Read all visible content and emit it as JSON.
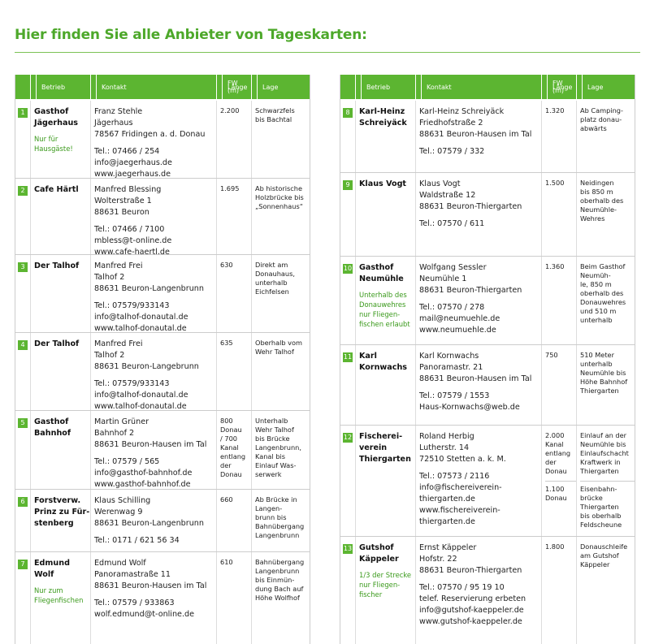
{
  "title": "Hier finden Sie alle Anbieter von Tageskarten:",
  "tables": [
    {
      "header": {
        "betrieb": "Betrieb",
        "kontakt": "Kontakt",
        "laenge": [
          "Länge",
          "FW (m)"
        ],
        "lage": "Lage"
      },
      "rows": [
        {
          "number": "1",
          "name": [
            "Gasthof",
            "Jägerhaus"
          ],
          "note": [
            "Nur für",
            "Hausgäste!"
          ],
          "address": [
            "Franz Stehle",
            "Jägerhaus",
            "78567 Fridingen a. d. Donau"
          ],
          "reach": [
            "Tel.:  07466 / 254",
            "info@jaegerhaus.de",
            "www.jaegerhaus.de"
          ],
          "laenge": [
            [
              "2.200"
            ]
          ],
          "lage": [
            [
              "Schwarzfels",
              "bis Bachtal"
            ]
          ]
        },
        {
          "number": "2",
          "name": [
            "Cafe Härtl"
          ],
          "note": [],
          "address": [
            "Manfred Blessing",
            "Wolterstraße 1",
            "88631 Beuron"
          ],
          "reach": [
            "Tel.: 07466 / 7100",
            "mbless@t-online.de",
            "www.cafe-haertl.de"
          ],
          "laenge": [
            [
              "1.695"
            ]
          ],
          "lage": [
            [
              "Ab historische",
              "Holzbrücke bis",
              "„Sonnenhaus“"
            ]
          ]
        },
        {
          "number": "3",
          "name": [
            "Der Talhof"
          ],
          "note": [],
          "address": [
            "Manfred Frei",
            "Talhof 2",
            "88631 Beuron-Langenbrunn"
          ],
          "reach": [
            "Tel.: 07579/933143",
            "info@talhof-donautal.de",
            "www.talhof-donautal.de"
          ],
          "laenge": [
            [
              "630"
            ]
          ],
          "lage": [
            [
              "Direkt am",
              "Donauhaus,",
              "unterhalb",
              "Eichfelsen"
            ]
          ]
        },
        {
          "number": "4",
          "name": [
            "Der Talhof"
          ],
          "note": [],
          "address": [
            "Manfred Frei",
            "Talhof 2",
            "88631 Beuron-Langebrunn"
          ],
          "reach": [
            "Tel.: 07579/933143",
            "info@talhof-donautal.de",
            "www.talhof-donautal.de"
          ],
          "laenge": [
            [
              "635"
            ]
          ],
          "lage": [
            [
              "Oberhalb vom",
              "Wehr Talhof"
            ]
          ]
        },
        {
          "number": "5",
          "name": [
            "Gasthof",
            "Bahnhof"
          ],
          "note": [],
          "address": [
            "Martin Grüner",
            "Bahnhof 2",
            "88631 Beuron-Hausen im Tal"
          ],
          "reach": [
            "Tel.: 07579 / 565",
            "info@gasthof-bahnhof.de",
            "www.gasthof-bahnhof.de"
          ],
          "laenge": [
            [
              "800",
              "Donau",
              "/ 700",
              "Kanal",
              "entlang",
              "der",
              "Donau"
            ]
          ],
          "lage": [
            [
              "Unterhalb",
              "Wehr Talhof",
              "bis Brücke",
              "Langenbrunn,",
              "Kanal bis",
              "Einlauf Was-",
              "serwerk"
            ]
          ]
        },
        {
          "number": "6",
          "name": [
            "Forstverw.",
            "Prinz zu Für-",
            "stenberg"
          ],
          "note": [],
          "address": [
            "Klaus Schilling",
            "Werenwag 9",
            "88631 Beuron-Langenbrunn"
          ],
          "reach": [
            "Tel.: 0171 / 621 56 34"
          ],
          "laenge": [
            [
              "660"
            ]
          ],
          "lage": [
            [
              "Ab Brücke in",
              "Langen-",
              "brunn bis",
              "Bahnübergang",
              "Langenbrunn"
            ]
          ]
        },
        {
          "number": "7",
          "name": [
            "Edmund",
            "Wolf"
          ],
          "note": [
            "Nur zum",
            "Fliegenfischen"
          ],
          "address": [
            "Edmund Wolf",
            "Panoramastraße 11",
            "88631 Beuron-Hausen im Tal"
          ],
          "reach": [
            "Tel.: 07579 / 933863",
            "wolf.edmund@t-online.de"
          ],
          "laenge": [
            [
              "610"
            ]
          ],
          "lage": [
            [
              "Bahnübergang",
              "Langenbrunn",
              "bis Einmün-",
              "dung Bach auf",
              "Höhe Wolfhof"
            ]
          ]
        }
      ]
    },
    {
      "header": {
        "betrieb": "Betrieb",
        "kontakt": "Kontakt",
        "laenge": [
          "Länge",
          "FW (m)"
        ],
        "lage": "Lage"
      },
      "rows": [
        {
          "number": "8",
          "name": [
            "Karl-Heinz",
            "Schreiyäck"
          ],
          "note": [],
          "address": [
            "Karl-Heinz Schreiyäck",
            "Friedhofstraße 2",
            "88631 Beuron-Hausen im Tal"
          ],
          "reach": [
            "Tel.: 07579 / 332"
          ],
          "laenge": [
            [
              "1.320"
            ]
          ],
          "lage": [
            [
              "Ab Camping-",
              "platz donau-",
              "abwärts"
            ]
          ]
        },
        {
          "number": "9",
          "name": [
            "Klaus Vogt"
          ],
          "note": [],
          "address": [
            "Klaus Vogt",
            "Waldstraße 12",
            "88631 Beuron-Thiergarten"
          ],
          "reach": [
            "Tel.: 07570 / 611"
          ],
          "laenge": [
            [
              "1.500"
            ]
          ],
          "lage": [
            [
              "Neidingen",
              "bis 850 m",
              "oberhalb des",
              "Neumühle-",
              "Wehres"
            ]
          ]
        },
        {
          "number": "10",
          "name": [
            "Gasthof",
            "Neumühle"
          ],
          "note": [
            "Unterhalb des",
            "Donauwehres",
            "nur Fliegen-",
            "fischen erlaubt"
          ],
          "address": [
            "Wolfgang Sessler",
            "Neumühle 1",
            "88631 Beuron-Thiergarten"
          ],
          "reach": [
            "Tel.: 07570 / 278",
            "mail@neumuehle.de",
            "www.neumuehle.de"
          ],
          "laenge": [
            [
              "1.360"
            ]
          ],
          "lage": [
            [
              "Beim Gasthof",
              "Neumüh-",
              "le, 850 m",
              "oberhalb des",
              "Donauwehres",
              "und 510 m",
              "unterhalb"
            ]
          ]
        },
        {
          "number": "11",
          "name": [
            "Karl",
            "Kornwachs"
          ],
          "note": [],
          "address": [
            "Karl Kornwachs",
            "Panoramastr. 21",
            "88631 Beuron-Hausen im Tal"
          ],
          "reach": [
            "Tel.: 07579 / 1553",
            "Haus-Kornwachs@web.de"
          ],
          "laenge": [
            [
              "750"
            ]
          ],
          "lage": [
            [
              "510 Meter",
              "unterhalb",
              "Neumühle bis",
              "Höhe Bahnhof",
              "Thiergarten"
            ]
          ]
        },
        {
          "number": "12",
          "name": [
            "Fischerei-",
            "verein",
            "Thiergarten"
          ],
          "note": [],
          "address": [
            "Roland Herbig",
            "Lutherstr. 14",
            "72510 Stetten a. k. M."
          ],
          "reach": [
            "Tel.: 07573 / 2116",
            "info@fischereiverein-",
            "thiergarten.de",
            "www.fischereiverein-",
            "thiergarten.de"
          ],
          "laenge": [
            [
              "2.000",
              "Kanal",
              "entlang",
              "der",
              "Donau"
            ],
            [
              "1.100",
              "Donau"
            ]
          ],
          "lage": [
            [
              "Einlauf an der",
              "Neumühle bis",
              "Einlaufschacht",
              "Kraftwerk in",
              "Thiergarten"
            ],
            [
              "Eisenbahn-",
              "brücke",
              "Thiergarten",
              "bis oberhalb",
              "Feldscheune"
            ]
          ]
        },
        {
          "number": "13",
          "name": [
            "Gutshof",
            "Käppeler"
          ],
          "note": [
            "1/3 der Strecke",
            "nur Fliegen-",
            "fischer"
          ],
          "address": [
            "Ernst Käppeler",
            "Hofstr. 22",
            "88631 Beuron-Thiergarten"
          ],
          "reach": [
            "Tel.: 07570 / 95 19 10",
            "telef. Reservierung erbeten",
            "info@gutshof-kaeppeler.de",
            "www.gutshof-kaeppeler.de"
          ],
          "laenge": [
            [
              "1.800"
            ]
          ],
          "lage": [
            [
              "Donauschleife",
              "am Gutshof",
              "Käppeler"
            ]
          ]
        }
      ]
    }
  ]
}
